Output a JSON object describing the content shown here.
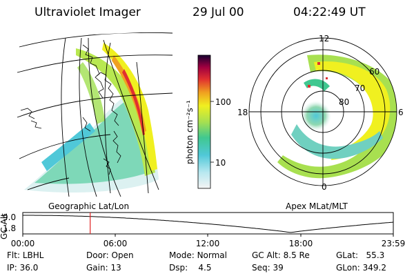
{
  "header": {
    "instrument": "Ultraviolet Imager",
    "date": "29 Jul 00",
    "time": "04:22:49 UT"
  },
  "colorbar": {
    "unit_label": "photon cm⁻²s⁻¹",
    "ticks": [
      "100",
      "10"
    ]
  },
  "left_panel": {
    "caption": "Geographic Lat/Lon"
  },
  "right_panel": {
    "caption": "Apex MLat/MLT",
    "mlt_labels": [
      "12",
      "18",
      "6",
      "0"
    ],
    "mlat_labels": [
      "60",
      "70",
      "80"
    ]
  },
  "altitude_plot": {
    "ylabel": "GC Alt",
    "yticks": [
      "9.0",
      "1.8"
    ],
    "xticks": [
      "00:00",
      "06:00",
      "12:00",
      "18:00",
      "23:59"
    ],
    "cursor_time": "04:22"
  },
  "status": {
    "flt": {
      "label": "Flt:",
      "value": "LBHL"
    },
    "ip": {
      "label": "IP:",
      "value": "36.0"
    },
    "door": {
      "label": "Door:",
      "value": "Open"
    },
    "gain": {
      "label": "Gain:",
      "value": "13"
    },
    "mode": {
      "label": "Mode:",
      "value": "Normal"
    },
    "dsp": {
      "label": "Dsp:",
      "value": "4.5"
    },
    "gcalt": {
      "label": "GC Alt:",
      "value": "8.5 Re"
    },
    "seq": {
      "label": "Seq:",
      "value": "39"
    },
    "glat": {
      "label": "GLat:",
      "value": "55.3"
    },
    "glon": {
      "label": "GLon:",
      "value": "349.2"
    }
  },
  "colors": {
    "cursor": "#e02020",
    "colormap": [
      "#f4f4f4",
      "#70d8e0",
      "#40c8a0",
      "#a0e050",
      "#f0f020",
      "#f0a020",
      "#e03030",
      "#a00040",
      "#200040"
    ]
  }
}
